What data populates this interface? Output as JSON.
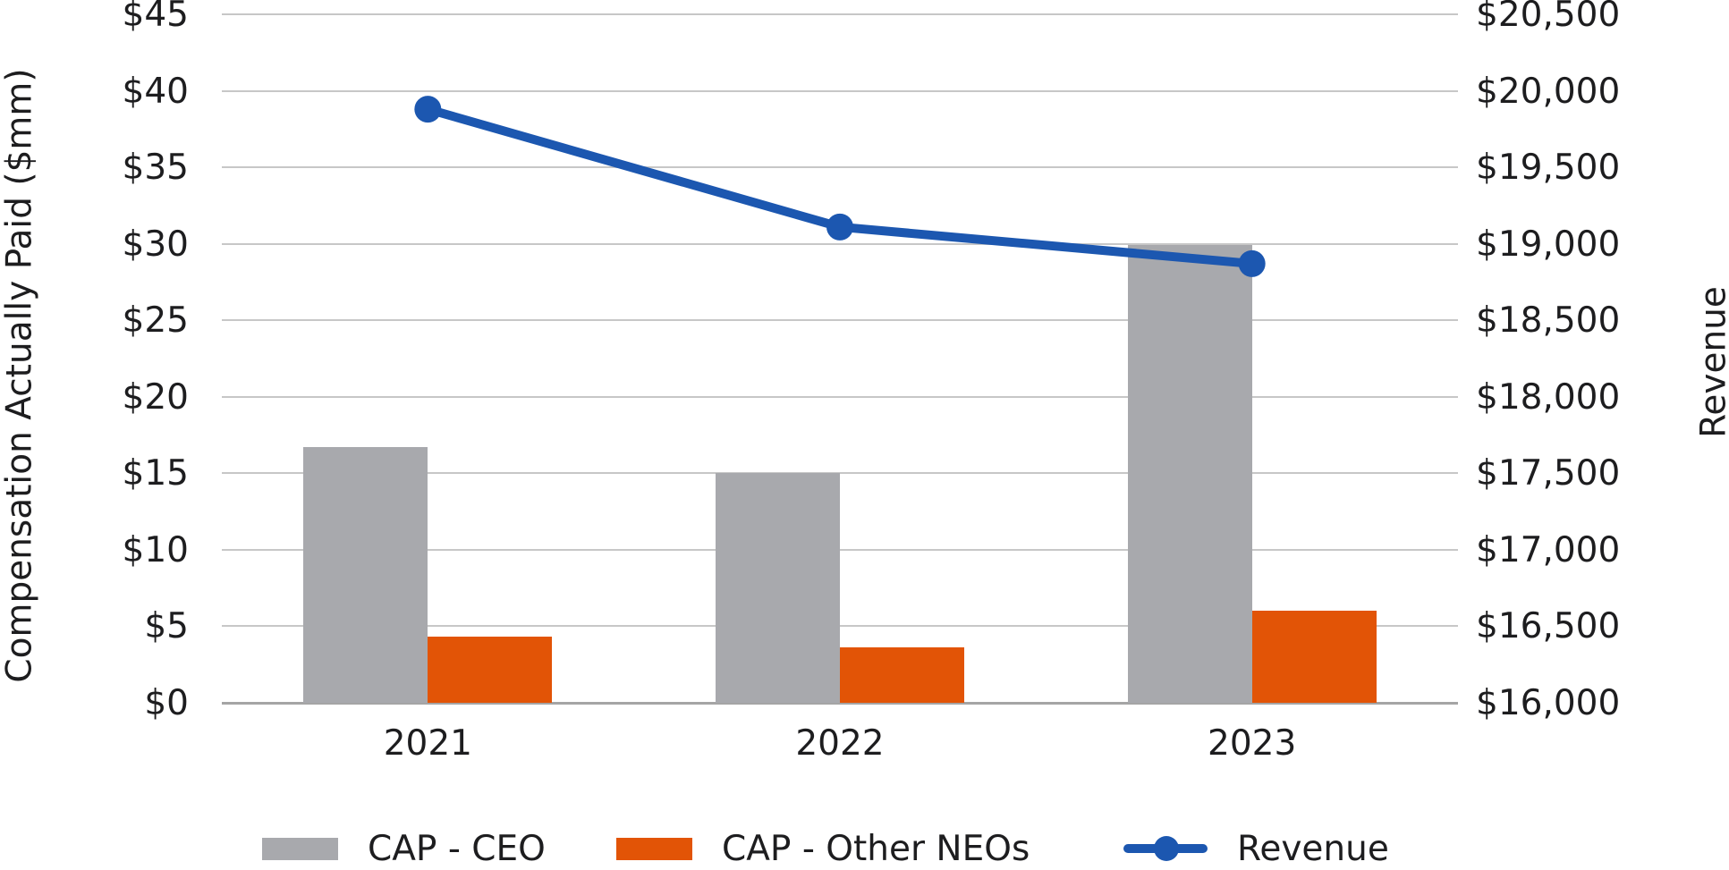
{
  "chart_data": {
    "type": "combo-bar-line",
    "categories": [
      "2021",
      "2022",
      "2023"
    ],
    "series": [
      {
        "name": "CAP - CEO",
        "type": "bar",
        "axis": "left",
        "color": "#a8a9ad",
        "values": [
          16.7,
          15.0,
          29.9
        ]
      },
      {
        "name": "CAP - Other NEOs",
        "type": "bar",
        "axis": "left",
        "color": "#e25406",
        "values": [
          4.3,
          3.6,
          6.0
        ]
      },
      {
        "name": "Revenue",
        "type": "line",
        "axis": "right",
        "color": "#1c57b0",
        "values": [
          19880,
          19110,
          18870
        ]
      }
    ],
    "left_axis": {
      "title": "Compensation Actually Paid ($mm)",
      "min": 0,
      "max": 45,
      "step": 5,
      "tick_labels": [
        "$45",
        "$40",
        "$35",
        "$30",
        "$25",
        "$20",
        "$15",
        "$10",
        "$5",
        "$0"
      ]
    },
    "right_axis": {
      "title": "Revenue",
      "min": 16000,
      "max": 20500,
      "step": 500,
      "tick_labels": [
        "$20,500",
        "$20,000",
        "$19,500",
        "$19,000",
        "$18,500",
        "$18,000",
        "$17,500",
        "$17,000",
        "$16,500",
        "$16,000"
      ]
    },
    "grid": true,
    "legend_position": "bottom"
  },
  "colors": {
    "grid": "#c7c7c7",
    "baseline": "#a5a5a5",
    "text": "#1d1d1f",
    "bar_gray": "#a8a9ad",
    "bar_orange": "#e25406",
    "line_blue": "#1c57b0"
  }
}
